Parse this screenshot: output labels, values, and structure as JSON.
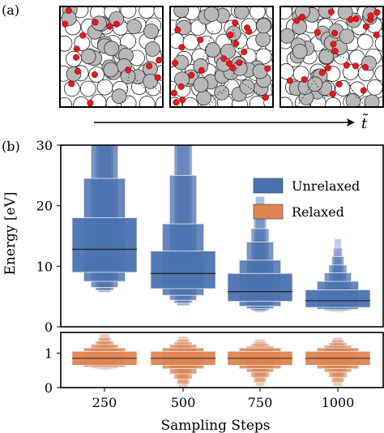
{
  "panel_labels": {
    "a": "(a)",
    "b": "(b)"
  },
  "time_axis_label": "t̃",
  "snapshots": [
    {
      "seed": 11,
      "red_count": 16,
      "style": "open"
    },
    {
      "seed": 29,
      "red_count": 22,
      "style": "mixed"
    },
    {
      "seed": 47,
      "red_count": 24,
      "style": "dense"
    }
  ],
  "colors": {
    "unrelaxed_fill": "#4c72b0",
    "relaxed_fill": "#dd8452",
    "atom_gray": "#b8b8b8",
    "atom_white": "#ffffff",
    "atom_red": "#e41a1c"
  },
  "chart_data": [
    {
      "type": "boxen",
      "name": "unrelaxed",
      "ylabel": "Energy [eV]",
      "ylim": [
        0,
        30
      ],
      "yticks": [
        0,
        10,
        20,
        30
      ],
      "categories": [
        "250",
        "500",
        "750",
        "1000"
      ],
      "legend": {
        "position": "top-right",
        "entries": [
          "Unrelaxed",
          "Relaxed"
        ]
      },
      "series": [
        {
          "category": "250",
          "median": 12.8,
          "boxes": [
            [
              9.0,
              18.0
            ],
            [
              7.5,
              24.5
            ],
            [
              6.5,
              30.0
            ],
            [
              6.0,
              30.0
            ],
            [
              5.7,
              30.0
            ]
          ]
        },
        {
          "category": "500",
          "median": 8.8,
          "boxes": [
            [
              6.3,
              12.5
            ],
            [
              5.2,
              17.0
            ],
            [
              4.4,
              25.0
            ],
            [
              3.9,
              30.0
            ],
            [
              3.5,
              30.0
            ]
          ]
        },
        {
          "category": "750",
          "median": 5.8,
          "boxes": [
            [
              4.2,
              8.8
            ],
            [
              3.4,
              11.0
            ],
            [
              3.0,
              14.0
            ],
            [
              2.7,
              16.2
            ],
            [
              2.5,
              18.7
            ],
            [
              2.4,
              21.5
            ]
          ]
        },
        {
          "category": "1000",
          "median": 4.3,
          "boxes": [
            [
              3.2,
              6.1
            ],
            [
              2.9,
              7.5
            ],
            [
              2.7,
              8.9
            ],
            [
              2.6,
              10.2
            ],
            [
              2.5,
              11.6
            ],
            [
              2.45,
              13.0
            ],
            [
              2.4,
              14.5
            ]
          ]
        }
      ]
    },
    {
      "type": "boxen",
      "name": "relaxed",
      "xlabel": "Sampling Steps",
      "ylim": [
        0,
        1.6
      ],
      "yticks": [
        0,
        1
      ],
      "categories": [
        "250",
        "500",
        "750",
        "1000"
      ],
      "series": [
        {
          "category": "250",
          "median": 0.85,
          "boxes": [
            [
              0.65,
              1.05
            ],
            [
              0.6,
              1.15
            ],
            [
              0.57,
              1.25
            ],
            [
              0.55,
              1.35
            ],
            [
              0.53,
              1.45
            ],
            [
              0.52,
              1.55
            ]
          ]
        },
        {
          "category": "500",
          "median": 0.85,
          "boxes": [
            [
              0.65,
              1.05
            ],
            [
              0.55,
              1.15
            ],
            [
              0.4,
              1.25
            ],
            [
              0.25,
              1.32
            ],
            [
              0.1,
              1.4
            ],
            [
              0.02,
              1.48
            ]
          ]
        },
        {
          "category": "750",
          "median": 0.85,
          "boxes": [
            [
              0.65,
              1.05
            ],
            [
              0.55,
              1.15
            ],
            [
              0.45,
              1.2
            ],
            [
              0.3,
              1.27
            ],
            [
              0.15,
              1.33
            ],
            [
              0.05,
              1.4
            ]
          ]
        },
        {
          "category": "1000",
          "median": 0.85,
          "boxes": [
            [
              0.65,
              1.05
            ],
            [
              0.55,
              1.15
            ],
            [
              0.45,
              1.22
            ],
            [
              0.3,
              1.3
            ],
            [
              0.15,
              1.38
            ],
            [
              0.05,
              1.45
            ]
          ]
        }
      ]
    }
  ]
}
